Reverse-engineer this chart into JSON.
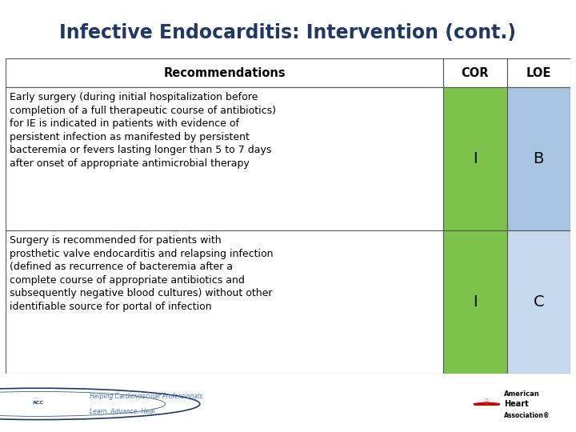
{
  "title": "Infective Endocarditis: Intervention (cont.)",
  "title_color": "#1F3864",
  "title_fontsize": 17,
  "header_row": [
    "Recommendations",
    "COR",
    "LOE"
  ],
  "rows": [
    {
      "recommendation": "Early surgery (during initial hospitalization before\ncompletion of a full therapeutic course of antibiotics)\nfor IE is indicated in patients with evidence of\npersistent infection as manifested by persistent\nbacteremia or fevers lasting longer than 5 to 7 days\nafter onset of appropriate antimicrobial therapy",
      "cor": "I",
      "loe": "B",
      "cor_color": "#7DC24B",
      "loe_color": "#A8C4E0"
    },
    {
      "recommendation": "Surgery is recommended for patients with\nprosthetic valve endocarditis and relapsing infection\n(defined as recurrence of bacteremia after a\ncomplete course of appropriate antibiotics and\nsubsequently negative blood cultures) without other\nidentifiable source for portal of infection",
      "cor": "I",
      "loe": "C",
      "cor_color": "#7DC24B",
      "loe_color": "#C5D8EE"
    }
  ],
  "table_border_color": "#555555",
  "bg_color": "#FFFFFF",
  "fig_width": 7.2,
  "fig_height": 5.4,
  "dpi": 100
}
